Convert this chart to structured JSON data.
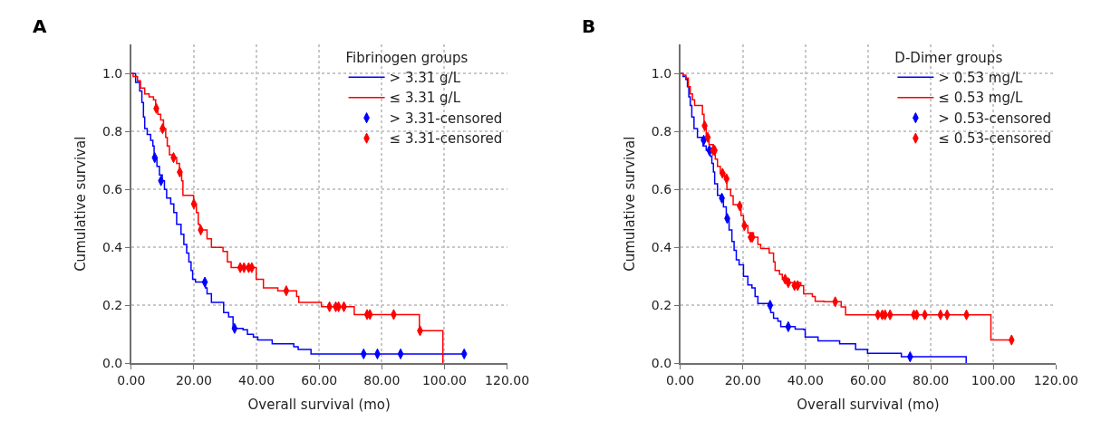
{
  "chart_data": [
    {
      "type": "step",
      "annotations": [
        "A"
      ],
      "xlabel": "Overall survival (mo)",
      "ylabel": "Cumulative survival",
      "legend_title": "Fibrinogen groups",
      "legend": "top right",
      "grid": true,
      "line_style": "solid",
      "xlim": [
        0,
        120
      ],
      "ylim": [
        0,
        1.1
      ],
      "xticks": [
        {
          "value": 0,
          "label": "0.00"
        },
        {
          "value": 20,
          "label": "20.00"
        },
        {
          "value": 40,
          "label": "40.00"
        },
        {
          "value": 60,
          "label": "60.00"
        },
        {
          "value": 80,
          "label": "80.00"
        },
        {
          "value": 100,
          "label": "100.00"
        },
        {
          "value": 120,
          "label": "120.00"
        }
      ],
      "yticks": [
        {
          "value": 0,
          "label": "0.0"
        },
        {
          "value": 0.2,
          "label": "0.2"
        },
        {
          "value": 0.4,
          "label": "0.4"
        },
        {
          "value": 0.6,
          "label": "0.6"
        },
        {
          "value": 0.8,
          "label": "0.8"
        },
        {
          "value": 1.0,
          "label": "1.0"
        }
      ],
      "series": [
        {
          "name": "> 3.31 g/L",
          "color": "#0000ff",
          "type": "step",
          "x": [
            0,
            1.4,
            2.7,
            3.4,
            3.9,
            4.3,
            5.1,
            6.2,
            6.9,
            7.3,
            8.2,
            9.0,
            9.9,
            10.6,
            11.3,
            12.6,
            13.6,
            14.5,
            15.9,
            16.8,
            17.7,
            18.4,
            19.1,
            19.6,
            20.5,
            23.7,
            24.2,
            25.6,
            29.5,
            31.1,
            32.5,
            35.7,
            37.1,
            39.0,
            40.4,
            45.0,
            51.9,
            53.3,
            57.4,
            106.3
          ],
          "values": [
            1.0,
            0.97,
            0.94,
            0.9,
            0.85,
            0.81,
            0.79,
            0.77,
            0.75,
            0.71,
            0.68,
            0.65,
            0.63,
            0.6,
            0.57,
            0.55,
            0.52,
            0.48,
            0.445,
            0.41,
            0.38,
            0.35,
            0.32,
            0.29,
            0.28,
            0.26,
            0.24,
            0.21,
            0.175,
            0.16,
            0.12,
            0.115,
            0.1,
            0.09,
            0.08,
            0.067,
            0.057,
            0.047,
            0.032,
            0.032
          ]
        },
        {
          "name": "≤ 3.31 g/L",
          "color": "#ff0000",
          "type": "step",
          "x": [
            0,
            0.6,
            2.0,
            2.95,
            4.3,
            5.7,
            7.1,
            7.8,
            8.5,
            9.4,
            10.3,
            11.0,
            11.5,
            12.2,
            13.4,
            14.5,
            15.4,
            16.1,
            16.5,
            19.9,
            20.8,
            21.4,
            21.9,
            24.2,
            25.6,
            29.3,
            30.7,
            31.9,
            39.9,
            42.2,
            46.8,
            52.8,
            53.5,
            60.7,
            71.2,
            92.0,
            99.5
          ],
          "values": [
            1.0,
            0.99,
            0.975,
            0.95,
            0.93,
            0.92,
            0.91,
            0.88,
            0.86,
            0.84,
            0.81,
            0.78,
            0.75,
            0.72,
            0.71,
            0.69,
            0.66,
            0.63,
            0.58,
            0.55,
            0.52,
            0.48,
            0.46,
            0.43,
            0.4,
            0.386,
            0.35,
            0.33,
            0.29,
            0.26,
            0.25,
            0.23,
            0.21,
            0.195,
            0.168,
            0.112,
            0.0
          ]
        },
        {
          "name": "> 3.31-censored",
          "color": "#0000ff",
          "type": "scatter",
          "marker": "diamond",
          "x": [
            7.5,
            9.5,
            23.5,
            33.0,
            74.2,
            78.6,
            86.0,
            106.3
          ],
          "values": [
            0.71,
            0.63,
            0.28,
            0.12,
            0.032,
            0.032,
            0.032,
            0.032
          ]
        },
        {
          "name": "≤ 3.31-censored",
          "color": "#ff0000",
          "type": "scatter",
          "marker": "diamond",
          "x": [
            8.0,
            10.0,
            13.5,
            15.5,
            20.0,
            22.2,
            34.8,
            36.0,
            37.5,
            38.5,
            49.5,
            63.3,
            65.3,
            66.2,
            67.9,
            75.3,
            76.2,
            83.8,
            92.2
          ],
          "values": [
            0.88,
            0.81,
            0.71,
            0.66,
            0.55,
            0.46,
            0.33,
            0.33,
            0.33,
            0.33,
            0.25,
            0.195,
            0.195,
            0.195,
            0.195,
            0.168,
            0.168,
            0.168,
            0.112
          ]
        }
      ]
    },
    {
      "type": "step",
      "annotations": [
        "B"
      ],
      "xlabel": "Overall survival (mo)",
      "ylabel": "Cumulative survival",
      "legend_title": "D-Dimer groups",
      "legend": "top right",
      "grid": true,
      "line_style": "solid",
      "xlim": [
        0,
        120
      ],
      "ylim": [
        0,
        1.1
      ],
      "xticks": [
        {
          "value": 0,
          "label": "0.00"
        },
        {
          "value": 20,
          "label": "20.00"
        },
        {
          "value": 40,
          "label": "40.00"
        },
        {
          "value": 60,
          "label": "60.00"
        },
        {
          "value": 80,
          "label": "80.00"
        },
        {
          "value": 100,
          "label": "100.00"
        },
        {
          "value": 120,
          "label": "120.00"
        }
      ],
      "yticks": [
        {
          "value": 0,
          "label": "0.0"
        },
        {
          "value": 0.2,
          "label": "0.2"
        },
        {
          "value": 0.4,
          "label": "0.4"
        },
        {
          "value": 0.6,
          "label": "0.6"
        },
        {
          "value": 0.8,
          "label": "0.8"
        },
        {
          "value": 1.0,
          "label": "1.0"
        }
      ],
      "series": [
        {
          "name": "> 0.53 mg/L",
          "color": "#0000ff",
          "type": "step",
          "x": [
            0,
            0.9,
            1.8,
            2.3,
            2.75,
            3.2,
            3.7,
            4.4,
            5.5,
            6.9,
            7.3,
            8.3,
            9.6,
            10.1,
            10.6,
            11.0,
            11.9,
            13.3,
            13.8,
            14.7,
            15.6,
            16.5,
            17.2,
            17.9,
            18.8,
            20.2,
            21.6,
            22.9,
            23.9,
            24.8,
            28.4,
            28.9,
            29.8,
            31.2,
            32.1,
            36.7,
            39.4,
            39.9,
            44.0,
            50.9,
            56.0,
            59.8,
            70.6,
            91.3
          ],
          "values": [
            1.0,
            0.99,
            0.98,
            0.955,
            0.92,
            0.89,
            0.85,
            0.81,
            0.78,
            0.77,
            0.75,
            0.735,
            0.715,
            0.69,
            0.66,
            0.62,
            0.58,
            0.57,
            0.54,
            0.5,
            0.46,
            0.42,
            0.39,
            0.357,
            0.34,
            0.3,
            0.27,
            0.26,
            0.23,
            0.206,
            0.2,
            0.175,
            0.155,
            0.145,
            0.126,
            0.118,
            0.116,
            0.09,
            0.077,
            0.067,
            0.047,
            0.034,
            0.022,
            0.0
          ]
        },
        {
          "name": "≤ 0.53 mg/L",
          "color": "#ff0000",
          "type": "step",
          "x": [
            0,
            0.9,
            1.8,
            2.6,
            3.2,
            3.9,
            4.6,
            7.1,
            7.6,
            8.3,
            9.2,
            10.6,
            11.2,
            11.9,
            12.8,
            14.2,
            14.9,
            16.1,
            16.9,
            18.8,
            19.4,
            20.2,
            21.6,
            23.4,
            24.8,
            25.7,
            28.4,
            29.8,
            30.3,
            31.7,
            32.6,
            34.9,
            38.5,
            39.4,
            42.2,
            43.1,
            45.9,
            51.4,
            52.8,
            99.2,
            105.8
          ],
          "values": [
            1.0,
            0.995,
            0.985,
            0.955,
            0.93,
            0.91,
            0.89,
            0.86,
            0.82,
            0.78,
            0.755,
            0.735,
            0.705,
            0.68,
            0.656,
            0.637,
            0.6,
            0.578,
            0.548,
            0.543,
            0.51,
            0.475,
            0.45,
            0.435,
            0.41,
            0.396,
            0.38,
            0.35,
            0.32,
            0.307,
            0.29,
            0.278,
            0.268,
            0.24,
            0.23,
            0.214,
            0.212,
            0.194,
            0.167,
            0.08,
            0.08
          ]
        },
        {
          "name": "> 0.53-censored",
          "color": "#0000ff",
          "type": "scatter",
          "marker": "diamond",
          "x": [
            7.5,
            9.3,
            13.3,
            15.0,
            28.7,
            34.5,
            73.4
          ],
          "values": [
            0.77,
            0.735,
            0.57,
            0.5,
            0.2,
            0.126,
            0.022
          ]
        },
        {
          "name": "≤ 0.53-censored",
          "color": "#ff0000",
          "type": "scatter",
          "marker": "diamond",
          "x": [
            7.8,
            8.8,
            10.5,
            11.0,
            13.5,
            14.8,
            19.0,
            20.5,
            22.5,
            23.0,
            33.5,
            34.5,
            36.5,
            37.5,
            49.5,
            63.1,
            64.5,
            65.4,
            67.0,
            74.6,
            75.5,
            78.1,
            83.1,
            85.2,
            91.4,
            105.8
          ],
          "values": [
            0.82,
            0.78,
            0.735,
            0.735,
            0.656,
            0.637,
            0.543,
            0.475,
            0.435,
            0.435,
            0.29,
            0.278,
            0.268,
            0.268,
            0.212,
            0.167,
            0.167,
            0.167,
            0.167,
            0.167,
            0.167,
            0.167,
            0.167,
            0.167,
            0.167,
            0.08
          ]
        }
      ]
    }
  ]
}
